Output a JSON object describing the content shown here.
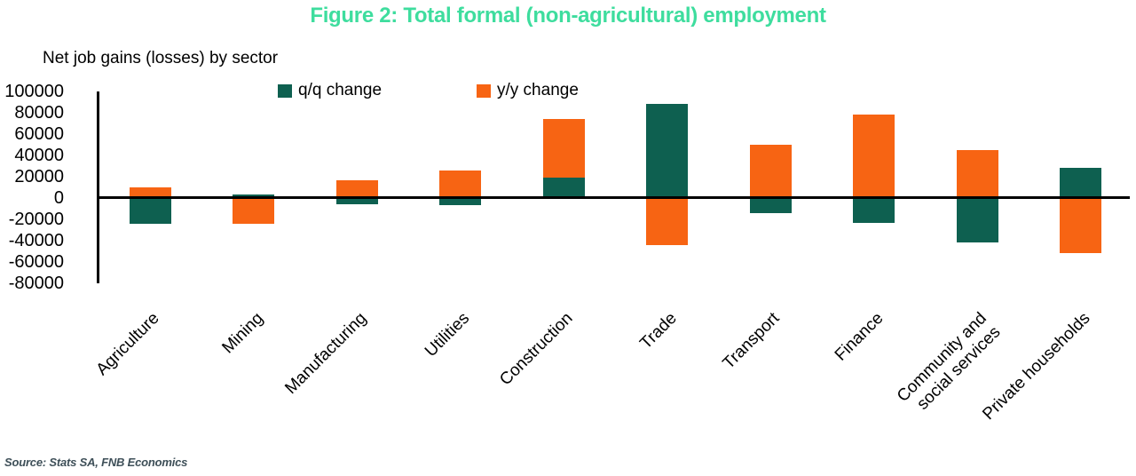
{
  "title": {
    "text": "Figure 2: Total formal (non-agricultural) employment",
    "color": "#3edd9e"
  },
  "subtitle": "Net job gains (losses) by sector",
  "legend": [
    {
      "label": "q/q change",
      "color": "#0e6050"
    },
    {
      "label": "y/y change",
      "color": "#f76413"
    }
  ],
  "source_note": "Source: Stats SA, FNB Economics",
  "chart_data": {
    "type": "bar",
    "bar_mode": "overlap",
    "title": "Figure 2: Total formal (non-agricultural) employment",
    "ylabel": "Net job gains (losses) by sector",
    "xlabel": "",
    "grid": false,
    "legend_position": "top",
    "categories": [
      "Agriculture",
      "Mining",
      "Manufacturing",
      "Utilities",
      "Construction",
      "Trade",
      "Transport",
      "Finance",
      "Community and\nsocial services",
      "Private households"
    ],
    "series": [
      {
        "name": "q/q change",
        "color": "#0e6050",
        "values": [
          -24000,
          3000,
          -6000,
          -7000,
          19000,
          88000,
          -14000,
          -23000,
          -42000,
          28000
        ]
      },
      {
        "name": "y/y change",
        "color": "#f76413",
        "values": [
          10000,
          -24000,
          17000,
          26000,
          74000,
          -44000,
          50000,
          78000,
          45000,
          -52000
        ]
      }
    ],
    "ylim": [
      -80000,
      100000
    ],
    "yticks": [
      100000,
      80000,
      60000,
      40000,
      20000,
      0,
      -20000,
      -40000,
      -60000,
      -80000
    ]
  }
}
